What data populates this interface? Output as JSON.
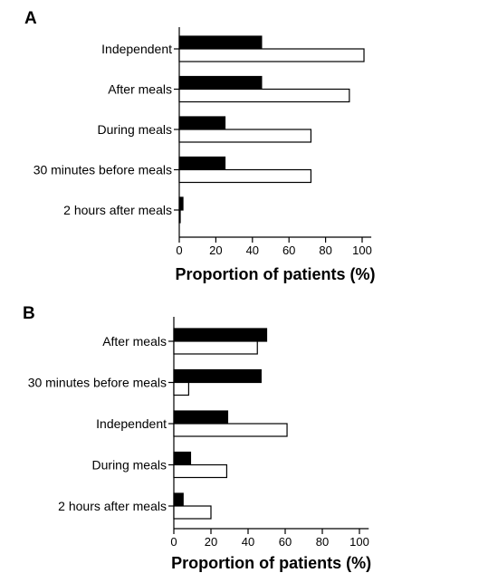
{
  "chart_data": [
    {
      "panel": "A",
      "type": "bar",
      "orientation": "horizontal",
      "categories": [
        "Independent",
        "After meals",
        "During meals",
        "30 minutes before meals",
        "2 hours after meals"
      ],
      "series": [
        {
          "values": [
            45,
            45,
            25,
            25,
            2
          ],
          "color": "#000000"
        },
        {
          "values": [
            101,
            93,
            72,
            72,
            0.5
          ],
          "color": "#ffffff"
        }
      ],
      "xlabel": "Proportion of patients (%)",
      "xlim": [
        0,
        105
      ],
      "xticks": [
        0,
        20,
        40,
        60,
        80,
        100
      ]
    },
    {
      "panel": "B",
      "type": "bar",
      "orientation": "horizontal",
      "categories": [
        "After meals",
        "30 minutes before meals",
        "Independent",
        "During meals",
        "2 hours after meals"
      ],
      "series": [
        {
          "values": [
            50,
            47,
            29,
            9,
            5
          ],
          "color": "#000000"
        },
        {
          "values": [
            45,
            8,
            61,
            28.5,
            20
          ],
          "color": "#ffffff"
        }
      ],
      "xlabel": "Proportion of patients (%)",
      "xlim": [
        0,
        105
      ],
      "xticks": [
        0,
        20,
        40,
        60,
        80,
        100
      ]
    }
  ]
}
